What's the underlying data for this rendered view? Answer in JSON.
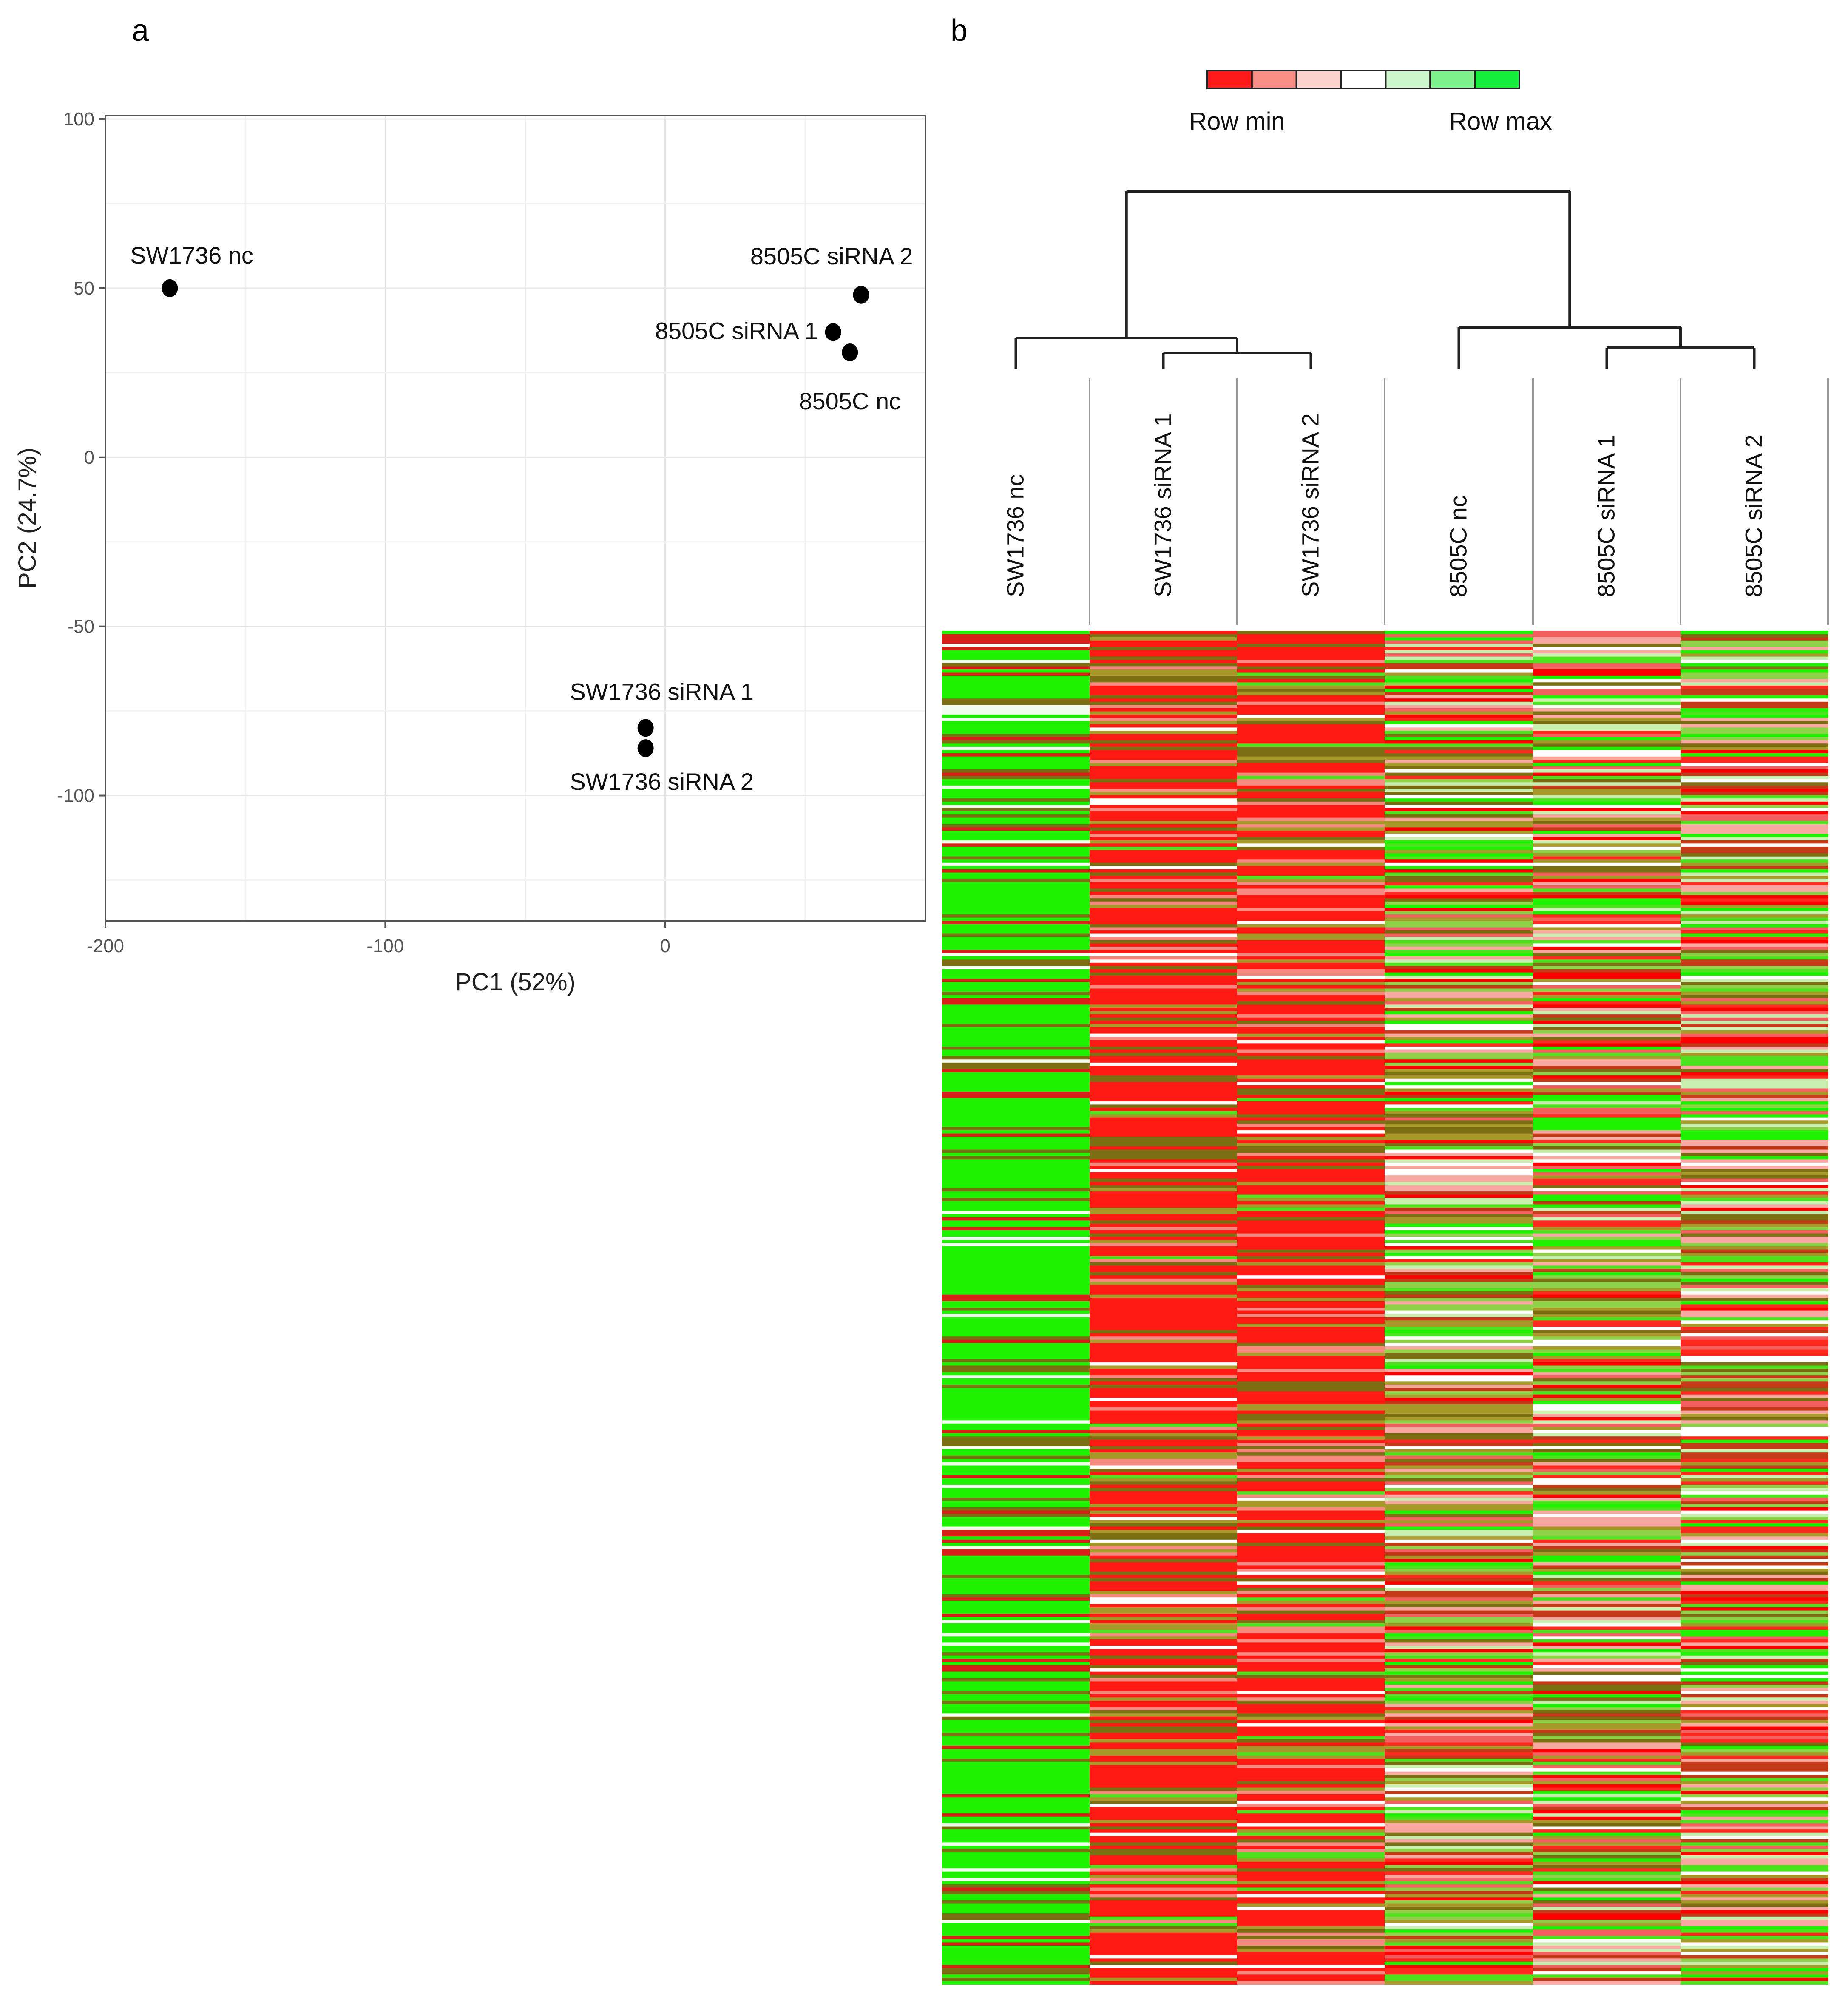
{
  "panels": {
    "a": "a",
    "b": "b"
  },
  "chart_data": [
    {
      "type": "scatter",
      "panel": "a",
      "title": "",
      "xlabel": "PC1 (52%)",
      "ylabel": "PC2 (24.7%)",
      "xlim": [
        -200,
        93
      ],
      "ylim": [
        -137,
        101
      ],
      "grid": true,
      "xticks": [
        -200,
        -100,
        0
      ],
      "yticks": [
        100,
        50,
        0,
        -50,
        -100
      ],
      "points": [
        {
          "label": "SW1736 nc",
          "x": -177,
          "y": 50,
          "label_pos": "above-right"
        },
        {
          "label": "8505C siRNA 2",
          "x": 70,
          "y": 48,
          "label_pos": "above-left"
        },
        {
          "label": "8505C siRNA 1",
          "x": 60,
          "y": 37,
          "label_pos": "left"
        },
        {
          "label": "8505C nc",
          "x": 66,
          "y": 31,
          "label_pos": "below"
        },
        {
          "label": "SW1736 siRNA 1",
          "x": -7,
          "y": -80,
          "label_pos": "above"
        },
        {
          "label": "SW1736 siRNA 2",
          "x": -7,
          "y": -86,
          "label_pos": "below"
        }
      ]
    },
    {
      "type": "heatmap",
      "panel": "b",
      "title": "",
      "legend": {
        "min_label": "Row min",
        "max_label": "Row max",
        "placement": "top",
        "colors": [
          "#ff1a1a",
          "#f88e86",
          "#fbd2cd",
          "#ffffff",
          "#cdf6cd",
          "#7ef08a",
          "#16ee3c"
        ]
      },
      "columns": [
        "SW1736 nc",
        "SW1736 siRNA 1",
        "SW1736 siRNA 2",
        "8505C nc",
        "8505C siRNA 1",
        "8505C siRNA 2"
      ],
      "column_clustering": "(SW1736 nc, (SW1736 siRNA 1, SW1736 siRNA 2)), (8505C nc, (8505C siRNA 1, 8505C siRNA 2))",
      "colors": {
        "low": "#ff0000",
        "mid": "#ffffff",
        "high": "#00ff00"
      }
    }
  ]
}
